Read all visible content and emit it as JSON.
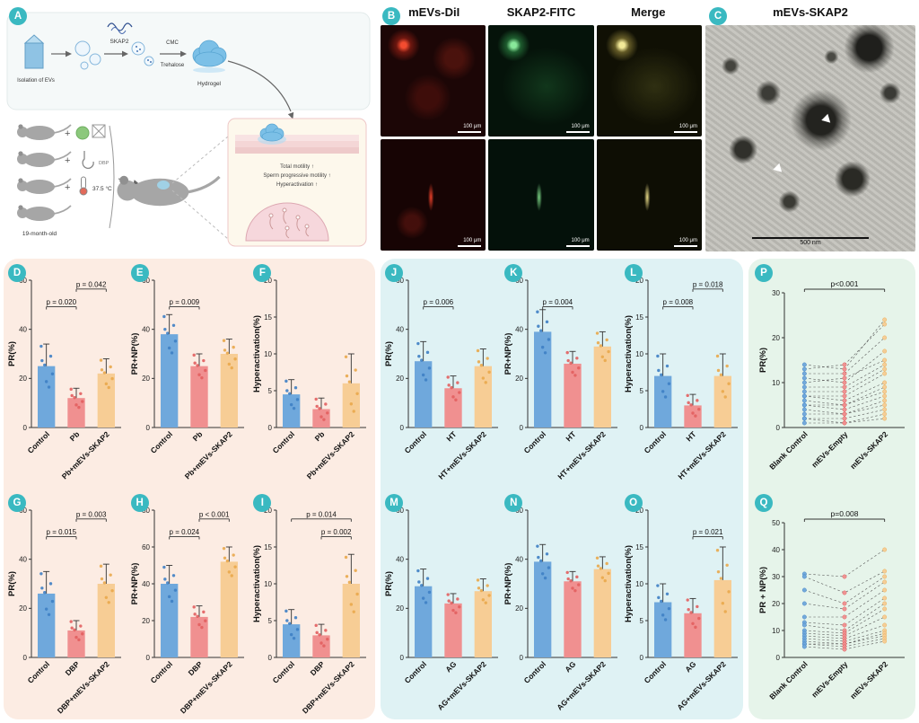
{
  "panel_labels": {
    "A": "A",
    "B": "B",
    "C": "C",
    "D": "D",
    "E": "E",
    "F": "F",
    "G": "G",
    "H": "H",
    "I": "I",
    "J": "J",
    "K": "K",
    "L": "L",
    "M": "M",
    "N": "N",
    "O": "O",
    "P": "P",
    "Q": "Q"
  },
  "panelA": {
    "isolation": "Isolation of EVs",
    "skap2": "SKAP2",
    "cmc": "CMC",
    "trehalose": "Trehalose",
    "hydrogel": "Hydrogel",
    "plus": "+",
    "dbp": "DBP",
    "temperature": "37.5 °C",
    "age": "19-month-old",
    "effects": [
      "Total motility ↑",
      "Sperm progressive motility ↑",
      "Hyperactivation ↑"
    ]
  },
  "panelB": {
    "headers": [
      "mEVs-DiI",
      "SKAP2-FITC",
      "Merge"
    ],
    "scale": "100 μm"
  },
  "panelC": {
    "title": "mEVs-SKAP2",
    "scale": "500 nm"
  },
  "style": {
    "accent_teal": "#3ab9c1",
    "box_pink": "#fcece3",
    "box_blue": "#dff2f4",
    "box_green": "#e6f4ea",
    "bar_colors": [
      "#6fa8dc",
      "#f09090",
      "#f7cd95"
    ],
    "dot_colors": [
      "#3e7fc4",
      "#e25f5f",
      "#e9a84b"
    ]
  },
  "chart_data": {
    "D": {
      "panel": "D",
      "type": "bar",
      "ylabel": "PR(%)",
      "ylim": [
        0,
        60
      ],
      "yticks": [
        0,
        20,
        40,
        60
      ],
      "categories": [
        "Control",
        "Pb",
        "Pb+mEVs-SKAP2"
      ],
      "values": [
        25,
        12,
        22
      ],
      "errors": [
        9,
        4,
        6
      ],
      "pvalues": [
        {
          "from": 0,
          "to": 1,
          "label": "p = 0.020"
        },
        {
          "from": 1,
          "to": 2,
          "label": "p = 0.042"
        }
      ]
    },
    "E": {
      "panel": "E",
      "type": "bar",
      "ylabel": "PR+NP(%)",
      "ylim": [
        0,
        60
      ],
      "yticks": [
        0,
        20,
        40,
        60
      ],
      "categories": [
        "Control",
        "Pb",
        "Pb+mEVs-SKAP2"
      ],
      "values": [
        38,
        25,
        30
      ],
      "errors": [
        8,
        5,
        6
      ],
      "pvalues": [
        {
          "from": 0,
          "to": 1,
          "label": "p = 0.009"
        }
      ]
    },
    "F": {
      "panel": "F",
      "type": "bar",
      "ylabel": "Hyperactivation(%)",
      "ylim": [
        0,
        20
      ],
      "yticks": [
        0,
        5,
        10,
        15,
        20
      ],
      "categories": [
        "Control",
        "Pb",
        "Pb+mEVs-SKAP2"
      ],
      "values": [
        4.5,
        2.5,
        6
      ],
      "errors": [
        2,
        1.5,
        4
      ],
      "pvalues": []
    },
    "G": {
      "panel": "G",
      "type": "bar",
      "ylabel": "PR(%)",
      "ylim": [
        0,
        60
      ],
      "yticks": [
        0,
        20,
        40,
        60
      ],
      "categories": [
        "Control",
        "DBP",
        "DBP+mEVs-SKAP2"
      ],
      "values": [
        26,
        11,
        30
      ],
      "errors": [
        9,
        4,
        8
      ],
      "pvalues": [
        {
          "from": 0,
          "to": 1,
          "label": "p = 0.015"
        },
        {
          "from": 1,
          "to": 2,
          "label": "p = 0.003"
        }
      ]
    },
    "H": {
      "panel": "H",
      "type": "bar",
      "ylabel": "PR+NP(%)",
      "ylim": [
        0,
        80
      ],
      "yticks": [
        0,
        20,
        40,
        60,
        80
      ],
      "categories": [
        "Control",
        "DBP",
        "DBP+mEVs-SKAP2"
      ],
      "values": [
        40,
        22,
        52
      ],
      "errors": [
        10,
        6,
        8
      ],
      "pvalues": [
        {
          "from": 0,
          "to": 1,
          "label": "p = 0.024"
        },
        {
          "from": 1,
          "to": 2,
          "label": "p < 0.001"
        }
      ]
    },
    "I": {
      "panel": "I",
      "type": "bar",
      "ylabel": "Hyperactivation(%)",
      "ylim": [
        0,
        20
      ],
      "yticks": [
        0,
        5,
        10,
        15,
        20
      ],
      "categories": [
        "Control",
        "DBP",
        "DBP+mEVs-SKAP2"
      ],
      "values": [
        4.5,
        3,
        10
      ],
      "errors": [
        2,
        1.5,
        4
      ],
      "pvalues": [
        {
          "from": 1,
          "to": 2,
          "label": "p = 0.002"
        },
        {
          "from": 0,
          "to": 2,
          "label": "p = 0.014"
        }
      ]
    },
    "J": {
      "panel": "J",
      "type": "bar",
      "ylabel": "PR(%)",
      "ylim": [
        0,
        60
      ],
      "yticks": [
        0,
        20,
        40,
        60
      ],
      "categories": [
        "Control",
        "HT",
        "HT+mEVs-SKAP2"
      ],
      "values": [
        27,
        16,
        25
      ],
      "errors": [
        8,
        5,
        7
      ],
      "pvalues": [
        {
          "from": 0,
          "to": 1,
          "label": "p = 0.006"
        }
      ]
    },
    "K": {
      "panel": "K",
      "type": "bar",
      "ylabel": "PR+NP(%)",
      "ylim": [
        0,
        60
      ],
      "yticks": [
        0,
        20,
        40,
        60
      ],
      "categories": [
        "Control",
        "HT",
        "HT+mEVs-SKAP2"
      ],
      "values": [
        39,
        26,
        33
      ],
      "errors": [
        9,
        5,
        6
      ],
      "pvalues": [
        {
          "from": 0,
          "to": 1,
          "label": "p = 0.004"
        }
      ]
    },
    "L": {
      "panel": "L",
      "type": "bar",
      "ylabel": "Hyperactivation(%)",
      "ylim": [
        0,
        20
      ],
      "yticks": [
        0,
        5,
        10,
        15,
        20
      ],
      "categories": [
        "Control",
        "HT",
        "HT+mEVs-SKAP2"
      ],
      "values": [
        7,
        3,
        7
      ],
      "errors": [
        3,
        1.5,
        3
      ],
      "pvalues": [
        {
          "from": 0,
          "to": 1,
          "label": "p = 0.008"
        },
        {
          "from": 1,
          "to": 2,
          "label": "p = 0.018"
        }
      ]
    },
    "M": {
      "panel": "M",
      "type": "bar",
      "ylabel": "PR(%)",
      "ylim": [
        0,
        60
      ],
      "yticks": [
        0,
        20,
        40,
        60
      ],
      "categories": [
        "Control",
        "AG",
        "AG+mEVs-SKAP2"
      ],
      "values": [
        29,
        22,
        27
      ],
      "errors": [
        7,
        4,
        5
      ],
      "pvalues": []
    },
    "N": {
      "panel": "N",
      "type": "bar",
      "ylabel": "PR+NP(%)",
      "ylim": [
        0,
        60
      ],
      "yticks": [
        0,
        20,
        40,
        60
      ],
      "categories": [
        "Control",
        "AG",
        "AG+mEVs-SKAP2"
      ],
      "values": [
        39,
        31,
        36
      ],
      "errors": [
        7,
        4,
        5
      ],
      "pvalues": []
    },
    "O": {
      "panel": "O",
      "type": "bar",
      "ylabel": "Hyperactivation(%)",
      "ylim": [
        0,
        20
      ],
      "yticks": [
        0,
        5,
        10,
        15,
        20
      ],
      "categories": [
        "Control",
        "AG",
        "AG+mEVs-SKAP2"
      ],
      "values": [
        7.5,
        6,
        10.5
      ],
      "errors": [
        2.5,
        2,
        4.5
      ],
      "pvalues": [
        {
          "from": 1,
          "to": 2,
          "label": "p = 0.021"
        }
      ]
    },
    "P": {
      "panel": "P",
      "type": "paired",
      "ylabel": "PR(%)",
      "ylim": [
        0,
        30
      ],
      "yticks": [
        0,
        10,
        20,
        30
      ],
      "categories": [
        "Blank Control",
        "mEVs-Empty",
        "mEVs-SKAP2"
      ],
      "pvalue": {
        "from": 0,
        "to": 2,
        "label": "p<0.001"
      },
      "pairs": [
        [
          14,
          13,
          24
        ],
        [
          13,
          14,
          23
        ],
        [
          12,
          12,
          20
        ],
        [
          11,
          10,
          17
        ],
        [
          10,
          11,
          15
        ],
        [
          9,
          9,
          14
        ],
        [
          8,
          8,
          13
        ],
        [
          7,
          7,
          12
        ],
        [
          7,
          6,
          10
        ],
        [
          6,
          5,
          9
        ],
        [
          5,
          5,
          8
        ],
        [
          5,
          4,
          7
        ],
        [
          4,
          3,
          6
        ],
        [
          3,
          3,
          5
        ],
        [
          2,
          2,
          4
        ],
        [
          2,
          1,
          3
        ],
        [
          1,
          1,
          2
        ]
      ]
    },
    "Q": {
      "panel": "Q",
      "type": "paired",
      "ylabel": "PR + NP(%)",
      "ylim": [
        0,
        50
      ],
      "yticks": [
        0,
        10,
        20,
        30,
        40,
        50
      ],
      "categories": [
        "Blank Control",
        "mEVs-Empty",
        "mEVs-SKAP2"
      ],
      "pvalue": {
        "from": 0,
        "to": 2,
        "label": "p=0.008"
      },
      "pairs": [
        [
          31,
          30,
          40
        ],
        [
          30,
          24,
          32
        ],
        [
          25,
          20,
          30
        ],
        [
          20,
          18,
          28
        ],
        [
          15,
          15,
          25
        ],
        [
          13,
          12,
          22
        ],
        [
          12,
          10,
          20
        ],
        [
          10,
          9,
          18
        ],
        [
          9,
          8,
          15
        ],
        [
          8,
          7,
          12
        ],
        [
          7,
          6,
          10
        ],
        [
          6,
          5,
          9
        ],
        [
          5,
          5,
          8
        ],
        [
          5,
          4,
          7
        ],
        [
          4,
          3,
          6
        ]
      ]
    }
  }
}
